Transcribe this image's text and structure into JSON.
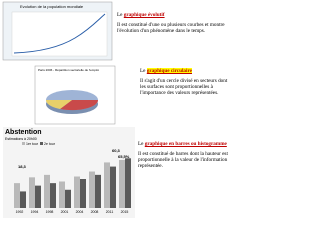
{
  "sections": [
    {
      "heading_prefix": "Le ",
      "heading": "graphique évolutif",
      "text": "Il est constitué d'une ou plusieurs courbes et montre l'évolution d'un phénomène dans le temps.",
      "chart_title": "Evolution de la population mondiale"
    },
    {
      "heading_prefix": "Le ",
      "heading": "graphique circulaire",
      "text": "Il s'agit d'un cercle divisé en secteurs dont les surfaces sont proportionnelles à l'importance des valeurs représentées.",
      "chart_title": "Paris 2006 - Répartition sectorielle de l'emploi"
    },
    {
      "heading_prefix": "Le ",
      "heading": "graphique en barres ou histogramme",
      "text": "Il est constitué de barres dont la hauteur est proportionnelle à la valeur de l'information représentée.",
      "chart_title": "Abstention",
      "chart_subtitle": "Estimations à 20h00"
    }
  ],
  "bar_chart": {
    "series": [
      {
        "name": "1er tour",
        "color": "#b9b9b9",
        "values": [
          30,
          37,
          40,
          32,
          38,
          44,
          55,
          58
        ]
      },
      {
        "name": "2e tour",
        "color": "#5a5a5a",
        "values": [
          20,
          27,
          30,
          22,
          35,
          40,
          50,
          60
        ]
      }
    ],
    "categories": [
      "1992",
      "1994",
      "1998",
      "2001",
      "2004",
      "2008",
      "2011",
      "2015"
    ],
    "labels": [
      "18,3",
      "60,3",
      "65,5%"
    ],
    "ylim": [
      0,
      70
    ]
  }
}
